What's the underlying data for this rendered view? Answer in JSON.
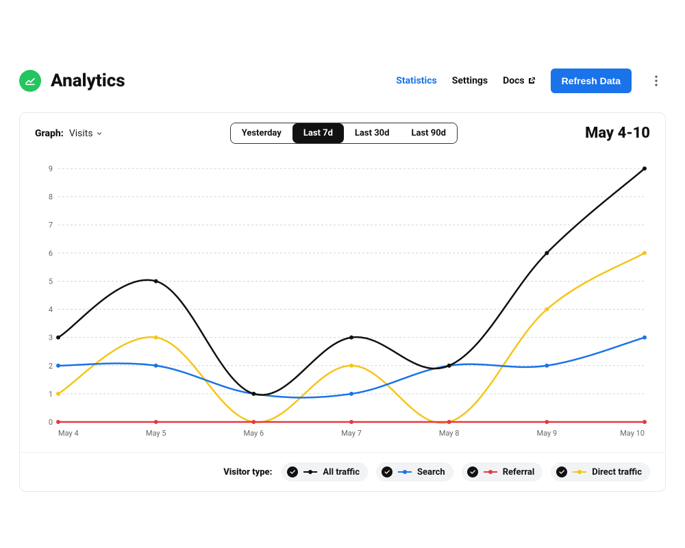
{
  "header": {
    "title": "Analytics",
    "nav": {
      "statistics": "Statistics",
      "settings": "Settings",
      "docs": "Docs"
    },
    "refresh_button": "Refresh Data",
    "accent_color": "#1a73e8",
    "logo_color": "#22c55e"
  },
  "controls": {
    "graph_label": "Graph:",
    "graph_select": "Visits",
    "range_options": [
      "Yesterday",
      "Last 7d",
      "Last 30d",
      "Last 90d"
    ],
    "range_active_index": 1,
    "date_range": "May 4-10"
  },
  "chart": {
    "type": "line",
    "x_labels": [
      "May 4",
      "May 5",
      "May 6",
      "May 7",
      "May 8",
      "May 9",
      "May 10"
    ],
    "ylim": [
      0,
      9
    ],
    "ytick_step": 1,
    "grid_color": "#cfd4da",
    "background_color": "#ffffff",
    "line_width": 2.5,
    "marker_radius": 2.5,
    "axis_fontsize": 11,
    "series": [
      {
        "name": "All traffic",
        "color": "#111111",
        "values": [
          3,
          5,
          1,
          3,
          2,
          6,
          9
        ]
      },
      {
        "name": "Search",
        "color": "#1a73e8",
        "values": [
          2,
          2,
          1,
          1,
          2,
          2,
          3
        ]
      },
      {
        "name": "Referral",
        "color": "#e6393f",
        "values": [
          0,
          0,
          0,
          0,
          0,
          0,
          0
        ]
      },
      {
        "name": "Direct traffic",
        "color": "#f5c518",
        "values": [
          1,
          3,
          0,
          2,
          0,
          4,
          6
        ]
      }
    ]
  },
  "legend": {
    "title": "Visitor type:"
  }
}
